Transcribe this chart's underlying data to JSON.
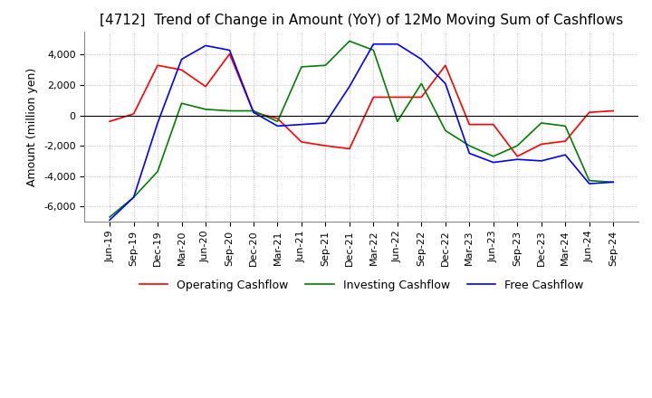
{
  "title": "[4712]  Trend of Change in Amount (YoY) of 12Mo Moving Sum of Cashflows",
  "ylabel": "Amount (million yen)",
  "ylim": [
    -7000,
    5500
  ],
  "yticks": [
    -6000,
    -4000,
    -2000,
    0,
    2000,
    4000
  ],
  "x_labels": [
    "Jun-19",
    "Sep-19",
    "Dec-19",
    "Mar-20",
    "Jun-20",
    "Sep-20",
    "Dec-20",
    "Mar-21",
    "Jun-21",
    "Sep-21",
    "Dec-21",
    "Mar-22",
    "Jun-22",
    "Sep-22",
    "Dec-22",
    "Mar-23",
    "Jun-23",
    "Sep-23",
    "Dec-23",
    "Mar-24",
    "Jun-24",
    "Sep-24"
  ],
  "operating": [
    -400,
    100,
    3300,
    3000,
    1900,
    4050,
    200,
    -200,
    -1750,
    -2000,
    -2200,
    1200,
    1200,
    1200,
    3300,
    -600,
    -600,
    -2700,
    -1900,
    -1700,
    200,
    300
  ],
  "investing": [
    -6700,
    -5400,
    -3700,
    800,
    400,
    300,
    300,
    -400,
    3200,
    3300,
    4900,
    4300,
    -400,
    2100,
    -1000,
    -2000,
    -2700,
    -2000,
    -500,
    -700,
    -4300,
    -4400
  ],
  "free": [
    -6900,
    -5400,
    -500,
    3700,
    4600,
    4300,
    200,
    -700,
    -600,
    -500,
    1900,
    4700,
    4700,
    3700,
    2100,
    -2500,
    -3100,
    -2900,
    -3000,
    -2600,
    -4500,
    -4400
  ],
  "operating_color": "#ff0000",
  "investing_color": "#008000",
  "free_color": "#0000ff",
  "bg_color": "#ffffff",
  "title_fontsize": 11,
  "axis_fontsize": 9,
  "tick_fontsize": 8,
  "legend_fontsize": 9
}
